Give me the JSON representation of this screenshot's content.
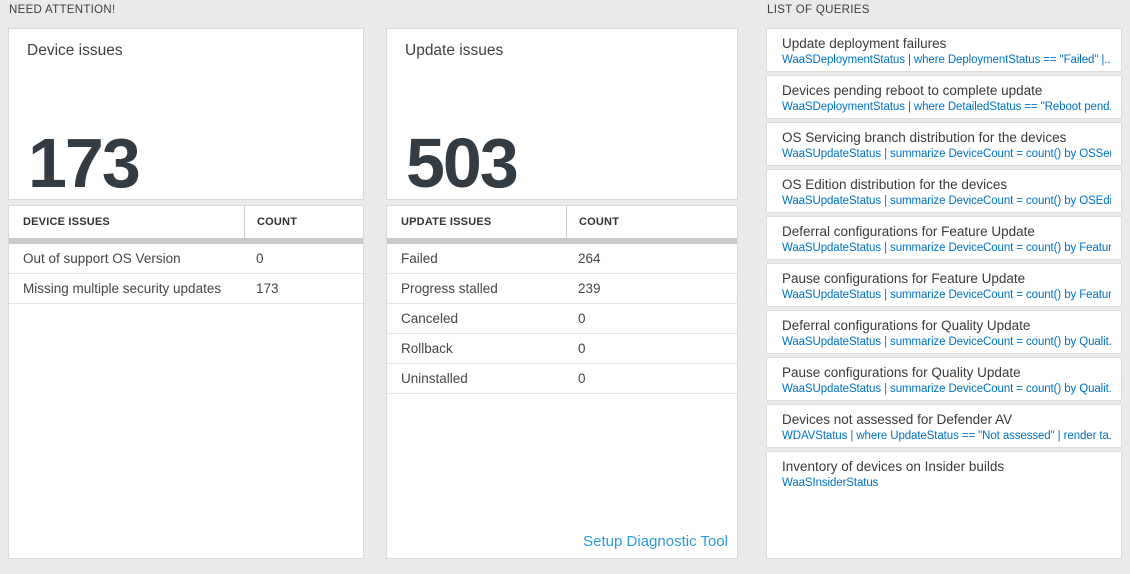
{
  "colors": {
    "page_background": "#eaeaea",
    "query_blue": "#0072c6",
    "link_blue": "#2e9bd9",
    "big_number_color": "#333b43",
    "header_bar_gray": "#c7c9cc"
  },
  "need_attention": {
    "label": "NEED ATTENTION!",
    "device": {
      "card_title": "Device issues",
      "count": "173",
      "table": {
        "headers": [
          "DEVICE ISSUES",
          "COUNT"
        ],
        "rows": [
          {
            "label": "Out of support OS Version",
            "count": "0"
          },
          {
            "label": "Missing multiple security updates",
            "count": "173"
          }
        ]
      }
    },
    "update": {
      "card_title": "Update issues",
      "count": "503",
      "table": {
        "headers": [
          "UPDATE ISSUES",
          "COUNT"
        ],
        "rows": [
          {
            "label": "Failed",
            "count": "264"
          },
          {
            "label": "Progress stalled",
            "count": "239"
          },
          {
            "label": "Canceled",
            "count": "0"
          },
          {
            "label": "Rollback",
            "count": "0"
          },
          {
            "label": "Uninstalled",
            "count": "0"
          }
        ]
      },
      "link_label": "Setup Diagnostic Tool"
    }
  },
  "queries": {
    "label": "LIST OF QUERIES",
    "items": [
      {
        "title": "Update deployment failures",
        "query": "WaaSDeploymentStatus | where DeploymentStatus == \"Failed\" |..."
      },
      {
        "title": "Devices pending reboot to complete update",
        "query": "WaaSDeploymentStatus | where DetailedStatus == \"Reboot pend..."
      },
      {
        "title": "OS Servicing branch distribution for the devices",
        "query": "WaaSUpdateStatus | summarize DeviceCount = count() by OSSer..."
      },
      {
        "title": "OS Edition distribution for the devices",
        "query": "WaaSUpdateStatus | summarize DeviceCount = count() by OSEdit..."
      },
      {
        "title": "Deferral configurations for Feature Update",
        "query": "WaaSUpdateStatus | summarize DeviceCount = count() by Featur..."
      },
      {
        "title": "Pause configurations for Feature Update",
        "query": "WaaSUpdateStatus | summarize DeviceCount = count() by Featur..."
      },
      {
        "title": "Deferral configurations for Quality Update",
        "query": "WaaSUpdateStatus | summarize DeviceCount = count() by Qualit..."
      },
      {
        "title": "Pause configurations for Quality Update",
        "query": "WaaSUpdateStatus | summarize DeviceCount = count() by Qualit..."
      },
      {
        "title": "Devices not assessed for Defender AV",
        "query": "WDAVStatus | where UpdateStatus == \"Not assessed\" | render ta..."
      },
      {
        "title": "Inventory of devices on Insider builds",
        "query": "WaaSInsiderStatus"
      }
    ]
  }
}
